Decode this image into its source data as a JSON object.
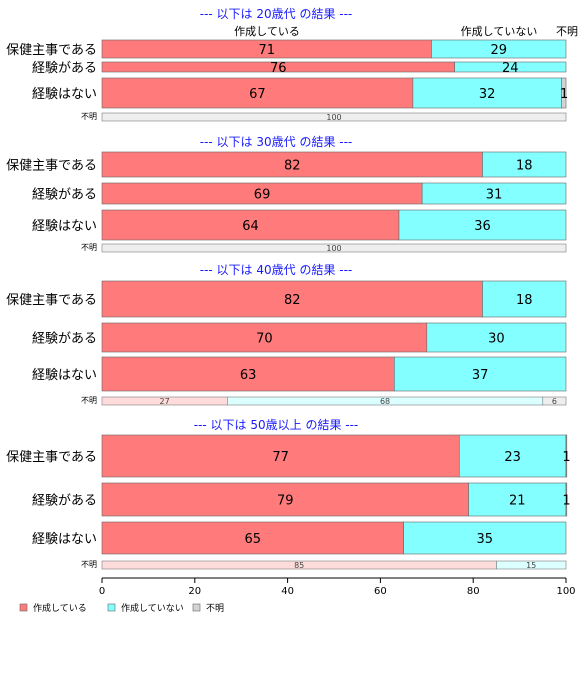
{
  "chart_data": {
    "type": "bar",
    "orientation": "horizontal",
    "stacked": true,
    "xlim": [
      0,
      100
    ],
    "x_ticks": [
      0,
      20,
      40,
      60,
      80,
      100
    ],
    "colors": {
      "作成している": "#ff7b7b",
      "作成していない": "#84ffff",
      "不明": "#d3d3d3",
      "title": "#1a1aff"
    },
    "top_column_labels": [
      "作成している",
      "作成していない",
      "不明"
    ],
    "legend": {
      "position": "bottom-left",
      "items": [
        "作成している",
        "作成していない",
        "不明"
      ]
    },
    "panels": [
      {
        "title": "--- 以下は 20歳代 の結果 ---",
        "categories": [
          "保健主事である",
          "経験がある",
          "経験はない"
        ],
        "series": [
          {
            "name": "作成している",
            "values": [
              71,
              76,
              67
            ]
          },
          {
            "name": "作成していない",
            "values": [
              29,
              24,
              32
            ]
          },
          {
            "name": "不明",
            "values": [
              0,
              0,
              1
            ]
          }
        ],
        "unknown_row": {
          "label": "不明",
          "values": [
            0,
            0,
            100
          ]
        }
      },
      {
        "title": "--- 以下は 30歳代 の結果 ---",
        "categories": [
          "保健主事である",
          "経験がある",
          "経験はない"
        ],
        "series": [
          {
            "name": "作成している",
            "values": [
              82,
              69,
              64
            ]
          },
          {
            "name": "作成していない",
            "values": [
              18,
              31,
              36
            ]
          },
          {
            "name": "不明",
            "values": [
              0,
              0,
              0
            ]
          }
        ],
        "unknown_row": {
          "label": "不明",
          "values": [
            0,
            0,
            100
          ]
        }
      },
      {
        "title": "--- 以下は 40歳代 の結果 ---",
        "categories": [
          "保健主事である",
          "経験がある",
          "経験はない"
        ],
        "series": [
          {
            "name": "作成している",
            "values": [
              82,
              70,
              63
            ]
          },
          {
            "name": "作成していない",
            "values": [
              18,
              30,
              37
            ]
          },
          {
            "name": "不明",
            "values": [
              0,
              0,
              0
            ]
          }
        ],
        "unknown_row": {
          "label": "不明",
          "values": [
            27,
            68,
            6
          ]
        }
      },
      {
        "title": "--- 以下は 50歳以上 の結果 ---",
        "categories": [
          "保健主事である",
          "経験がある",
          "経験はない"
        ],
        "series": [
          {
            "name": "作成している",
            "values": [
              77,
              79,
              65
            ]
          },
          {
            "name": "作成していない",
            "values": [
              23,
              21,
              35
            ]
          },
          {
            "name": "不明",
            "values": [
              1,
              1,
              0
            ]
          }
        ],
        "unknown_row": {
          "label": "不明",
          "values": [
            85,
            15,
            0
          ]
        }
      }
    ]
  }
}
